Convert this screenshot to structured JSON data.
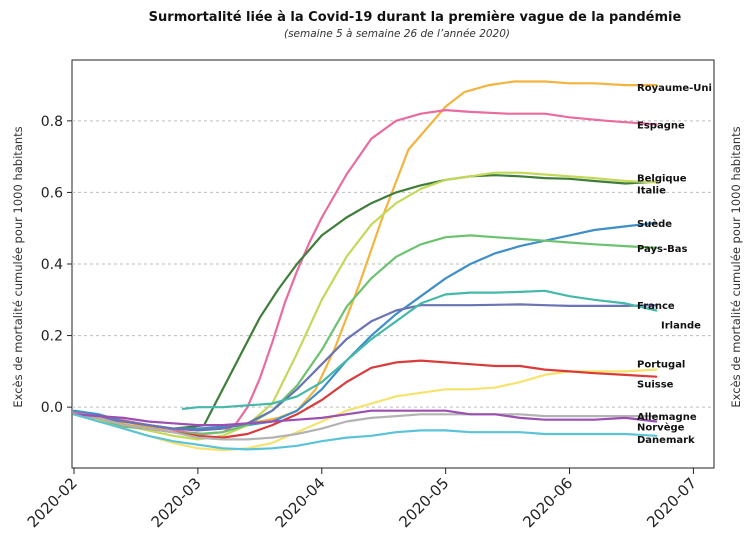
{
  "chart_data": {
    "type": "line",
    "title": "Surmortalité liée à la Covid-19 durant la première vague de la pandémie",
    "subtitle": "(semaine 5 à semaine 26 de l’année 2020)",
    "ylabel": "Excès de mortalité cumulée pour 1000 habitants",
    "ylim": [
      -0.17,
      0.97
    ],
    "xlim": [
      0,
      5.15
    ],
    "x_ticks": [
      {
        "x": 0,
        "label": "2020-02"
      },
      {
        "x": 1,
        "label": "2020-03"
      },
      {
        "x": 2,
        "label": "2020-04"
      },
      {
        "x": 3,
        "label": "2020-05"
      },
      {
        "x": 4,
        "label": "2020-06"
      },
      {
        "x": 5,
        "label": "2020-07"
      }
    ],
    "y_ticks": [
      {
        "y": 0.0,
        "label": "0.0"
      },
      {
        "y": 0.2,
        "label": "0.2"
      },
      {
        "y": 0.4,
        "label": "0.4"
      },
      {
        "y": 0.6,
        "label": "0.6"
      },
      {
        "y": 0.8,
        "label": "0.8"
      }
    ],
    "grid": "horizontal dashed",
    "series": [
      {
        "name": "Royaume-Uni",
        "color": "#f2b43e",
        "label_y": 0.895,
        "x": [
          0,
          0.15,
          0.3,
          0.45,
          0.6,
          0.75,
          0.9,
          1.05,
          1.2,
          1.35,
          1.5,
          1.65,
          1.8,
          1.95,
          2.1,
          2.3,
          2.5,
          2.7,
          2.85,
          3.0,
          3.15,
          3.35,
          3.55,
          3.8,
          4.0,
          4.2,
          4.45,
          4.7
        ],
        "y": [
          -0.02,
          -0.025,
          -0.04,
          -0.05,
          -0.055,
          -0.06,
          -0.06,
          -0.06,
          -0.055,
          -0.05,
          -0.04,
          -0.03,
          -0.01,
          0.05,
          0.16,
          0.34,
          0.54,
          0.72,
          0.78,
          0.84,
          0.88,
          0.9,
          0.91,
          0.91,
          0.905,
          0.905,
          0.9,
          0.9
        ]
      },
      {
        "name": "Espagne",
        "color": "#ea6b9f",
        "label_y": 0.79,
        "x": [
          0,
          0.15,
          0.3,
          0.45,
          0.6,
          0.75,
          0.9,
          1.05,
          1.2,
          1.3,
          1.4,
          1.5,
          1.6,
          1.7,
          1.8,
          1.9,
          2.0,
          2.2,
          2.4,
          2.6,
          2.8,
          3.0,
          3.2,
          3.5,
          3.8,
          4.0,
          4.3,
          4.7
        ],
        "y": [
          -0.015,
          -0.02,
          -0.03,
          -0.04,
          -0.05,
          -0.06,
          -0.07,
          -0.075,
          -0.07,
          -0.05,
          0.0,
          0.08,
          0.18,
          0.29,
          0.38,
          0.46,
          0.53,
          0.65,
          0.75,
          0.8,
          0.82,
          0.83,
          0.825,
          0.82,
          0.82,
          0.81,
          0.8,
          0.79
        ]
      },
      {
        "name": "Belgique",
        "color": "#3f7d3a",
        "label_y": 0.625,
        "x": [
          0,
          0.2,
          0.4,
          0.6,
          0.8,
          0.95,
          1.05,
          1.2,
          1.35,
          1.5,
          1.65,
          1.8,
          2.0,
          2.2,
          2.4,
          2.6,
          2.8,
          3.0,
          3.2,
          3.4,
          3.6,
          3.8,
          4.0,
          4.2,
          4.45,
          4.7
        ],
        "y": [
          -0.02,
          -0.03,
          -0.04,
          -0.05,
          -0.06,
          -0.055,
          -0.05,
          0.05,
          0.15,
          0.25,
          0.33,
          0.4,
          0.48,
          0.53,
          0.57,
          0.6,
          0.62,
          0.635,
          0.645,
          0.648,
          0.645,
          0.64,
          0.638,
          0.632,
          0.625,
          0.63
        ]
      },
      {
        "name": "Italie",
        "color": "#c4d85a",
        "label_y": 0.625,
        "x": [
          0,
          0.2,
          0.4,
          0.6,
          0.8,
          1.0,
          1.2,
          1.4,
          1.6,
          1.8,
          2.0,
          2.2,
          2.4,
          2.6,
          2.8,
          3.0,
          3.2,
          3.4,
          3.6,
          3.8,
          4.0,
          4.2,
          4.45,
          4.7
        ],
        "y": [
          -0.02,
          -0.035,
          -0.05,
          -0.065,
          -0.08,
          -0.09,
          -0.08,
          -0.05,
          0.01,
          0.15,
          0.3,
          0.42,
          0.51,
          0.57,
          0.61,
          0.635,
          0.645,
          0.655,
          0.655,
          0.65,
          0.645,
          0.64,
          0.632,
          0.628
        ]
      },
      {
        "name": "Suède",
        "color": "#3e8fc8",
        "label_y": 0.515,
        "x": [
          0,
          0.2,
          0.4,
          0.6,
          0.8,
          1.0,
          1.2,
          1.4,
          1.6,
          1.8,
          2.0,
          2.2,
          2.4,
          2.6,
          2.8,
          3.0,
          3.2,
          3.4,
          3.6,
          3.8,
          4.0,
          4.2,
          4.45,
          4.7
        ],
        "y": [
          -0.01,
          -0.02,
          -0.04,
          -0.05,
          -0.06,
          -0.06,
          -0.055,
          -0.05,
          -0.04,
          -0.01,
          0.05,
          0.13,
          0.2,
          0.26,
          0.31,
          0.36,
          0.4,
          0.43,
          0.45,
          0.465,
          0.48,
          0.495,
          0.505,
          0.515
        ]
      },
      {
        "name": "Pays-Bas",
        "color": "#6cc26e",
        "label_y": 0.445,
        "x": [
          0,
          0.2,
          0.4,
          0.6,
          0.8,
          1.0,
          1.2,
          1.4,
          1.6,
          1.8,
          2.0,
          2.2,
          2.4,
          2.6,
          2.8,
          3.0,
          3.2,
          3.4,
          3.6,
          3.8,
          4.0,
          4.2,
          4.45,
          4.7
        ],
        "y": [
          -0.02,
          -0.04,
          -0.055,
          -0.06,
          -0.07,
          -0.075,
          -0.07,
          -0.05,
          -0.01,
          0.06,
          0.16,
          0.28,
          0.36,
          0.42,
          0.455,
          0.475,
          0.48,
          0.475,
          0.47,
          0.465,
          0.46,
          0.455,
          0.45,
          0.445
        ]
      },
      {
        "name": "France",
        "color": "#6a74b5",
        "label_y": 0.285,
        "x": [
          0,
          0.2,
          0.4,
          0.6,
          0.8,
          1.0,
          1.2,
          1.4,
          1.6,
          1.8,
          2.0,
          2.2,
          2.4,
          2.6,
          2.8,
          3.0,
          3.2,
          3.4,
          3.6,
          3.8,
          4.0,
          4.2,
          4.45,
          4.7
        ],
        "y": [
          -0.02,
          -0.03,
          -0.04,
          -0.05,
          -0.06,
          -0.065,
          -0.06,
          -0.045,
          -0.01,
          0.05,
          0.12,
          0.19,
          0.24,
          0.27,
          0.285,
          0.285,
          0.285,
          0.286,
          0.287,
          0.285,
          0.283,
          0.283,
          0.283,
          0.285
        ]
      },
      {
        "name": "Irlande",
        "color": "#45b8a8",
        "label_y": 0.27,
        "x": [
          0.88,
          1.0,
          1.2,
          1.4,
          1.6,
          1.8,
          2.0,
          2.2,
          2.4,
          2.6,
          2.8,
          3.0,
          3.2,
          3.4,
          3.6,
          3.8,
          4.0,
          4.2,
          4.45,
          4.7
        ],
        "y": [
          -0.005,
          0.0,
          0.0,
          0.005,
          0.01,
          0.03,
          0.07,
          0.13,
          0.19,
          0.24,
          0.29,
          0.315,
          0.32,
          0.32,
          0.322,
          0.325,
          0.31,
          0.3,
          0.29,
          0.27
        ]
      },
      {
        "name": "Portugal",
        "color": "#f6e36d",
        "label_y": 0.105,
        "x": [
          0,
          0.2,
          0.4,
          0.6,
          0.8,
          1.0,
          1.2,
          1.4,
          1.6,
          1.8,
          2.0,
          2.2,
          2.4,
          2.6,
          2.8,
          3.0,
          3.2,
          3.4,
          3.6,
          3.8,
          4.0,
          4.2,
          4.45,
          4.7
        ],
        "y": [
          -0.02,
          -0.04,
          -0.06,
          -0.08,
          -0.1,
          -0.115,
          -0.12,
          -0.115,
          -0.1,
          -0.07,
          -0.04,
          -0.01,
          0.01,
          0.03,
          0.04,
          0.05,
          0.05,
          0.055,
          0.07,
          0.09,
          0.1,
          0.1,
          0.1,
          0.105
        ]
      },
      {
        "name": "Suisse",
        "color": "#d93b3b",
        "label_y": 0.085,
        "x": [
          0,
          0.2,
          0.4,
          0.6,
          0.8,
          1.0,
          1.2,
          1.4,
          1.6,
          1.8,
          2.0,
          2.2,
          2.4,
          2.6,
          2.8,
          3.0,
          3.2,
          3.4,
          3.6,
          3.8,
          4.0,
          4.2,
          4.45,
          4.7
        ],
        "y": [
          -0.02,
          -0.03,
          -0.05,
          -0.06,
          -0.07,
          -0.08,
          -0.085,
          -0.075,
          -0.05,
          -0.02,
          0.02,
          0.07,
          0.11,
          0.125,
          0.13,
          0.125,
          0.12,
          0.115,
          0.115,
          0.105,
          0.1,
          0.095,
          0.09,
          0.085
        ]
      },
      {
        "name": "Allemagne",
        "color": "#b3b3b3",
        "label_y": -0.025,
        "x": [
          0,
          0.2,
          0.4,
          0.6,
          0.8,
          1.0,
          1.2,
          1.4,
          1.6,
          1.8,
          2.0,
          2.2,
          2.4,
          2.6,
          2.8,
          3.0,
          3.2,
          3.4,
          3.6,
          3.8,
          4.0,
          4.2,
          4.45,
          4.7
        ],
        "y": [
          -0.02,
          -0.03,
          -0.05,
          -0.06,
          -0.07,
          -0.085,
          -0.09,
          -0.09,
          -0.085,
          -0.075,
          -0.06,
          -0.04,
          -0.03,
          -0.025,
          -0.02,
          -0.02,
          -0.02,
          -0.02,
          -0.02,
          -0.025,
          -0.025,
          -0.025,
          -0.025,
          -0.025
        ]
      },
      {
        "name": "Norvège",
        "color": "#9b4fb0",
        "label_y": -0.04,
        "x": [
          0,
          0.2,
          0.4,
          0.6,
          0.8,
          1.0,
          1.2,
          1.4,
          1.6,
          1.8,
          2.0,
          2.2,
          2.4,
          2.6,
          2.8,
          3.0,
          3.2,
          3.4,
          3.6,
          3.8,
          4.0,
          4.2,
          4.45,
          4.7
        ],
        "y": [
          -0.02,
          -0.025,
          -0.03,
          -0.04,
          -0.045,
          -0.05,
          -0.05,
          -0.045,
          -0.04,
          -0.035,
          -0.03,
          -0.02,
          -0.01,
          -0.01,
          -0.01,
          -0.01,
          -0.02,
          -0.02,
          -0.03,
          -0.035,
          -0.035,
          -0.035,
          -0.03,
          -0.04
        ]
      },
      {
        "name": "Danemark",
        "color": "#5bc3d8",
        "label_y": -0.078,
        "x": [
          0,
          0.2,
          0.4,
          0.6,
          0.8,
          1.0,
          1.2,
          1.4,
          1.6,
          1.8,
          2.0,
          2.2,
          2.4,
          2.6,
          2.8,
          3.0,
          3.2,
          3.4,
          3.6,
          3.8,
          4.0,
          4.2,
          4.45,
          4.7
        ],
        "y": [
          -0.02,
          -0.04,
          -0.06,
          -0.08,
          -0.095,
          -0.105,
          -0.115,
          -0.118,
          -0.115,
          -0.108,
          -0.095,
          -0.085,
          -0.08,
          -0.07,
          -0.065,
          -0.065,
          -0.07,
          -0.07,
          -0.07,
          -0.075,
          -0.075,
          -0.075,
          -0.075,
          -0.08
        ]
      }
    ]
  }
}
